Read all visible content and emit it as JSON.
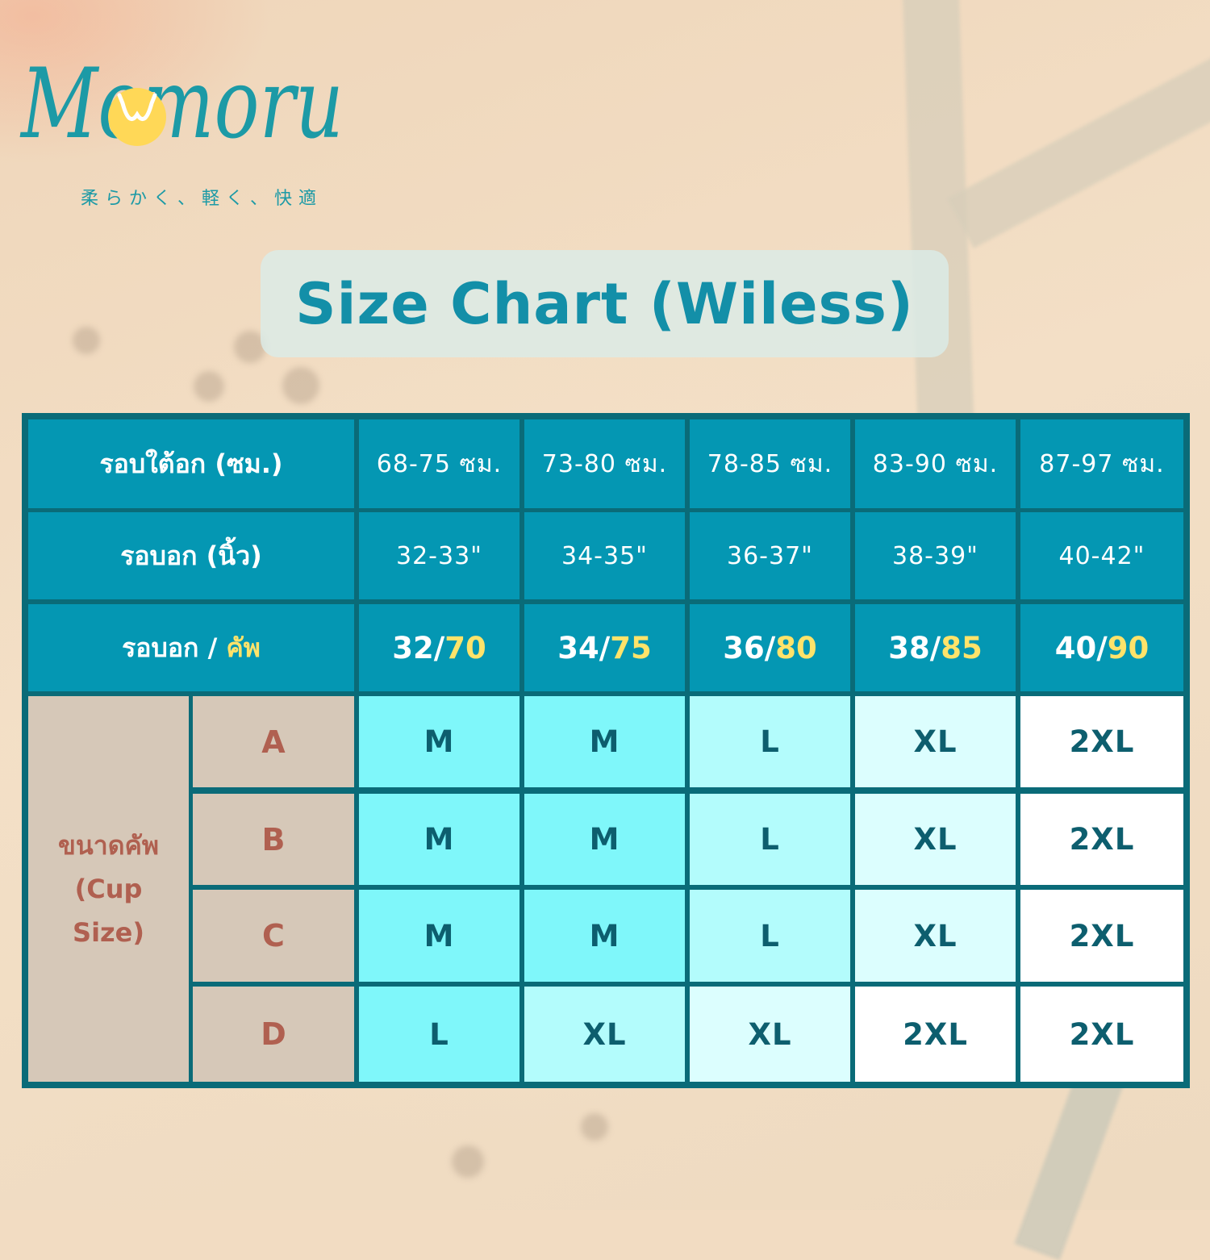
{
  "colors": {
    "brand_teal": "#138fa8",
    "header_bg": "#0497b3",
    "table_border": "#0a6b78",
    "accent_yellow": "#ffe36a",
    "cup_bg": "#d6c8b8",
    "cup_text": "#b06050",
    "size_text": "#0d5e6e",
    "size_shades": [
      "#7ff7fa",
      "#b3fcfc",
      "#dcfefe",
      "#ffffff"
    ]
  },
  "brand": {
    "logo_text": "Momoru",
    "tagline": "柔らかく、軽く、快適"
  },
  "title": "Size Chart (Wiless)",
  "table": {
    "underbust": {
      "label": "รอบใต้อก (ซม.)",
      "values": [
        "68-75 ซม.",
        "73-80 ซม.",
        "78-85 ซม.",
        "83-90 ซม.",
        "87-97 ซม."
      ]
    },
    "bust_inch": {
      "label": "รอบอก (นิ้ว)",
      "values": [
        "32-33\"",
        "34-35\"",
        "36-37\"",
        "38-39\"",
        "40-42\""
      ]
    },
    "bust_cup": {
      "label_main": "รอบอก / ",
      "label_accent": "คัพ",
      "values": [
        {
          "main": "32/",
          "accent": "70"
        },
        {
          "main": "34/",
          "accent": "75"
        },
        {
          "main": "36/",
          "accent": "80"
        },
        {
          "main": "38/",
          "accent": "85"
        },
        {
          "main": "40/",
          "accent": "90"
        }
      ]
    },
    "cup_size": {
      "label_line1": "ขนาดคัพ",
      "label_line2": "(Cup",
      "label_line3": "Size)",
      "rows": [
        {
          "cup": "A",
          "sizes": [
            "M",
            "M",
            "L",
            "XL",
            "2XL"
          ],
          "shade": [
            0,
            0,
            1,
            2,
            3
          ]
        },
        {
          "cup": "B",
          "sizes": [
            "M",
            "M",
            "L",
            "XL",
            "2XL"
          ],
          "shade": [
            0,
            0,
            1,
            2,
            3
          ]
        },
        {
          "cup": "C",
          "sizes": [
            "M",
            "M",
            "L",
            "XL",
            "2XL"
          ],
          "shade": [
            0,
            0,
            1,
            2,
            3
          ]
        },
        {
          "cup": "D",
          "sizes": [
            "L",
            "XL",
            "XL",
            "2XL",
            "2XL"
          ],
          "shade": [
            0,
            1,
            2,
            3,
            3
          ]
        }
      ]
    }
  }
}
